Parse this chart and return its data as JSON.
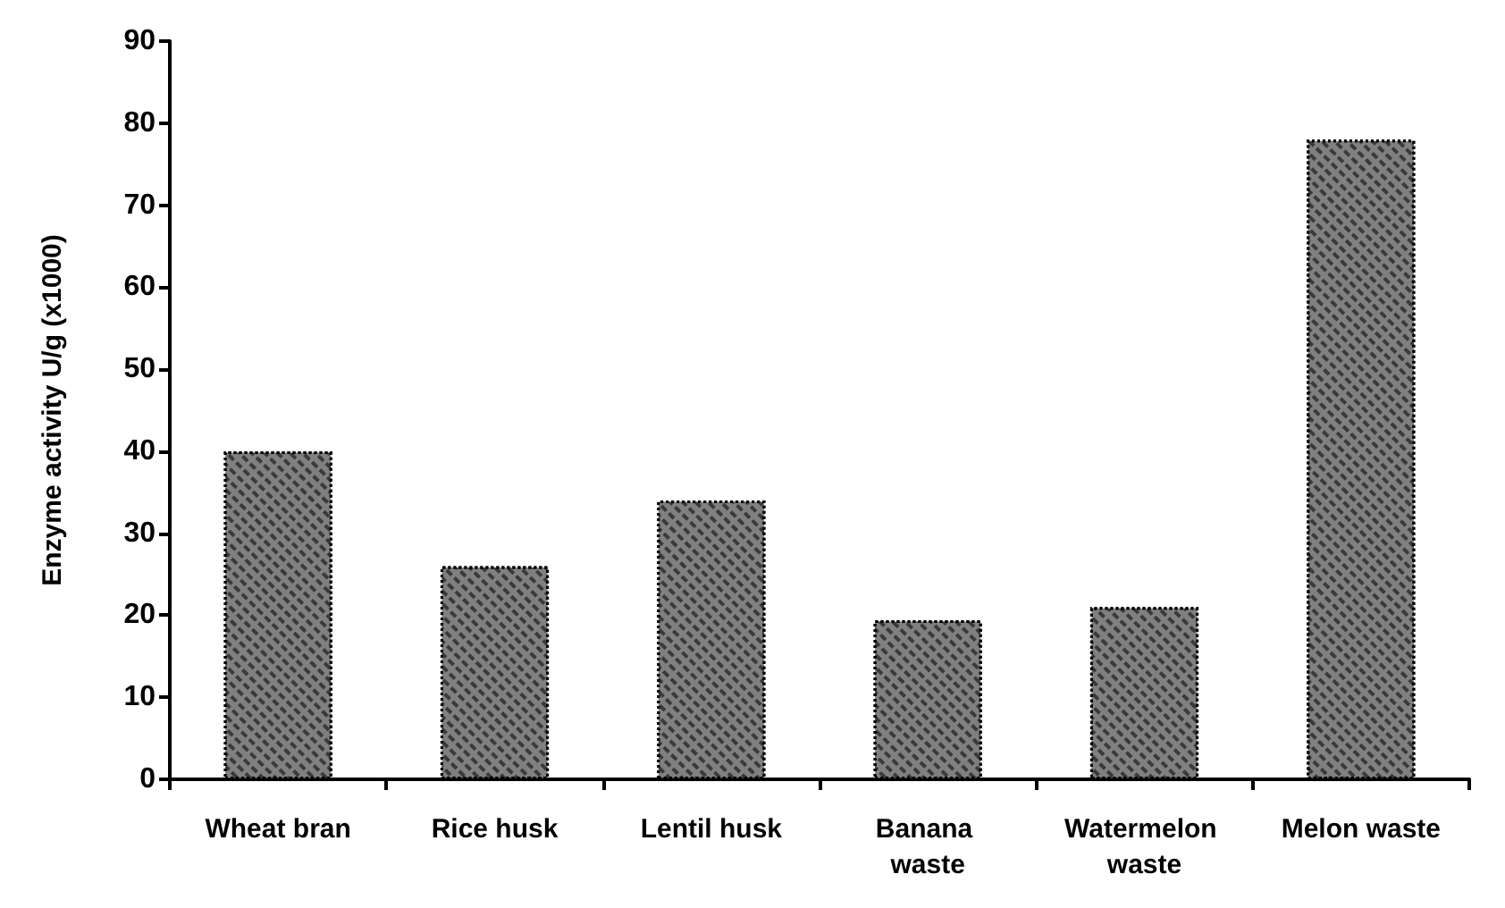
{
  "chart_data": {
    "type": "bar",
    "ylabel": "Enzyme activity U/g (x1000)",
    "categories": [
      "Wheat bran",
      "Rice husk",
      "Lentil husk",
      "Banana waste",
      "Watermelon waste",
      "Melon waste"
    ],
    "values": [
      40,
      26,
      34,
      19.4,
      21,
      78
    ],
    "color": "#808080",
    "ylim": [
      0,
      90
    ],
    "yticks": [
      0,
      10,
      20,
      30,
      40,
      50,
      60,
      70,
      80,
      90
    ],
    "grid": false
  }
}
